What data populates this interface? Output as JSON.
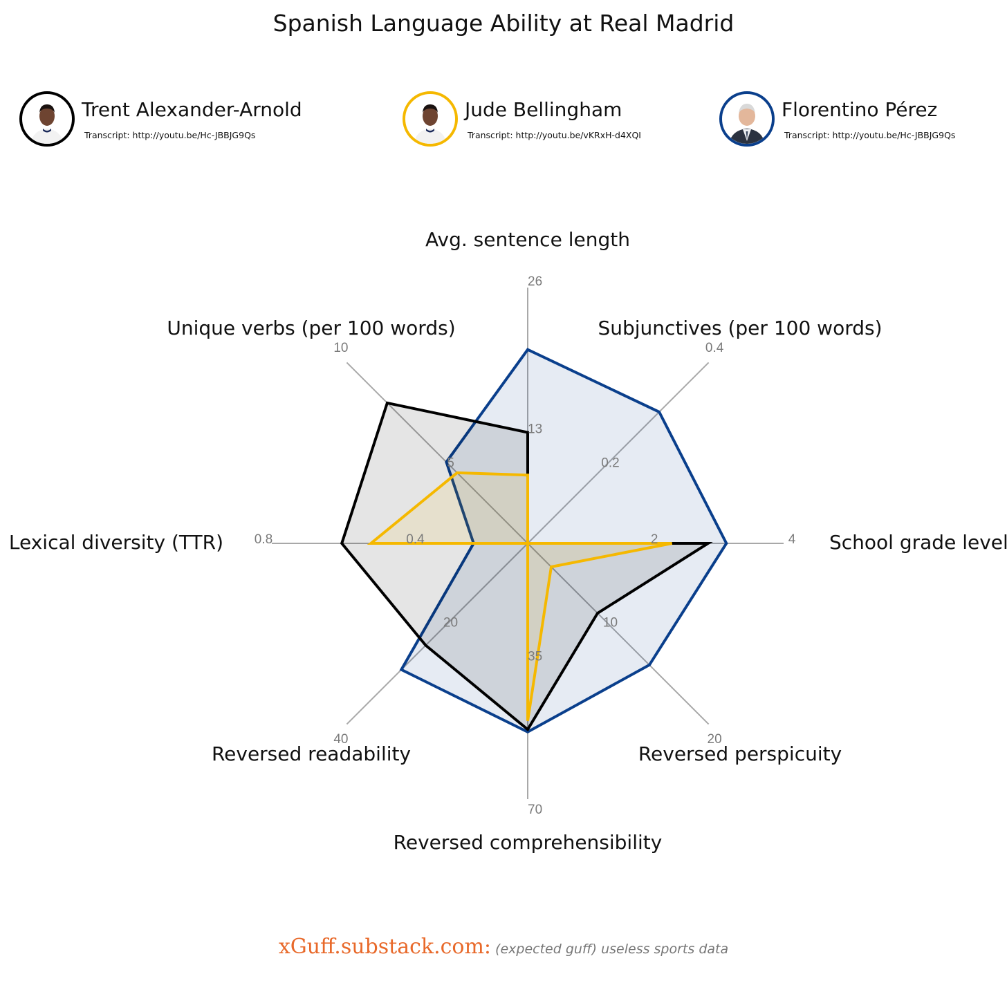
{
  "title": "Spanish Language Ability at Real Madrid",
  "legend": [
    {
      "name": "Trent Alexander-Arnold",
      "transcript": "Transcript: http://youtu.be/Hc-JBBJG9Qs",
      "color": "#000000",
      "icon": "player-portrait-icon"
    },
    {
      "name": "Jude Bellingham",
      "transcript": "Transcript: http://youtu.be/vKRxH-d4XQI",
      "color": "#F5B800",
      "icon": "player-portrait-icon"
    },
    {
      "name": "Florentino Pérez",
      "transcript": "Transcript: http://youtu.be/Hc-JBBJG9Qs",
      "color": "#0A3F8C",
      "icon": "president-portrait-icon"
    }
  ],
  "chart_data": {
    "type": "radar",
    "axes": [
      {
        "label": "Avg. sentence length",
        "ticks": [
          "13",
          "26"
        ],
        "max": 26
      },
      {
        "label": "Subjunctives (per 100 words)",
        "ticks": [
          "0.2",
          "0.4"
        ],
        "max": 0.4
      },
      {
        "label": "School grade level",
        "ticks": [
          "2",
          "4"
        ],
        "max": 4
      },
      {
        "label": "Reversed perspicuity",
        "ticks": [
          "10",
          "20"
        ],
        "max": 20
      },
      {
        "label": "Reversed comprehensibility",
        "ticks": [
          "35",
          "70"
        ],
        "max": 70
      },
      {
        "label": "Reversed readability",
        "ticks": [
          "20",
          "40"
        ],
        "max": 40
      },
      {
        "label": "Lexical diversity (TTR)",
        "ticks": [
          "0.4",
          "0.8"
        ],
        "max": 0.8
      },
      {
        "label": "Unique verbs (per 100 words)",
        "ticks": [
          "5",
          "10"
        ],
        "max": 10
      }
    ],
    "series": [
      {
        "name": "Florentino Pérez",
        "color": "#0A3F8C",
        "fill": "rgba(10,63,140,0.10)",
        "values": [
          22.7,
          0.335,
          3.58,
          15.5,
          59.5,
          32.2,
          0.195,
          5.18
        ]
      },
      {
        "name": "Trent Alexander-Arnold",
        "color": "#000000",
        "fill": "rgba(0,0,0,0.10)",
        "values": [
          13.0,
          0.0,
          3.25,
          8.9,
          58.7,
          26.0,
          0.67,
          8.95
        ]
      },
      {
        "name": "Jude Bellingham",
        "color": "#F5B800",
        "fill": "rgba(245,184,0,0.10)",
        "values": [
          8.0,
          0.0,
          2.6,
          3.0,
          56.0,
          0.0,
          0.565,
          4.5
        ]
      }
    ]
  },
  "footer": {
    "site": "xGuff.substack.com:",
    "tagline": "(expected guff) useless sports data",
    "site_color": "#E8692A"
  }
}
